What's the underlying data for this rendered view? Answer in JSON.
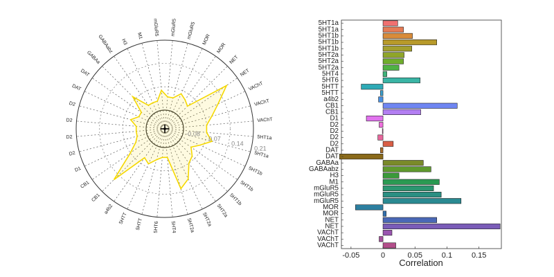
{
  "chart_data": [
    {
      "type": "radar",
      "categories": [
        "5HT1a",
        "5HT1a",
        "5HT1b",
        "5HT1b",
        "5HT1b",
        "5HT2a",
        "5HT2a",
        "5HT2a",
        "5HT4",
        "5HT6",
        "5HTT",
        "5HTT",
        "a4b2",
        "CB1",
        "CB1",
        "D1",
        "D2",
        "D2",
        "D2",
        "D2",
        "DAT",
        "DAT",
        "GABAa",
        "GABAabz",
        "H3",
        "M1",
        "mGluR5",
        "mGluR5",
        "mGluR5",
        "MOR",
        "MOR",
        "NET",
        "NET",
        "VAChT",
        "VAChT",
        "VAChT"
      ],
      "values": [
        0.07,
        0.09,
        0.06,
        0.04,
        0.06,
        0.07,
        0.11,
        0.13,
        0.03,
        0.03,
        0.04,
        0.06,
        0.05,
        0.16,
        0.07,
        0.04,
        0.03,
        0.03,
        0.03,
        0.05,
        0.03,
        0.03,
        0.08,
        0.03,
        0.03,
        0.03,
        0.06,
        0.04,
        0.04,
        0.06,
        0.05,
        0.04,
        0.17,
        0.12,
        0.09,
        0.07
      ],
      "radial_ticks": [
        "-0.08",
        "0.07",
        "0.14",
        "0.21"
      ],
      "rlim": [
        -0.08,
        0.21
      ],
      "color": "#f5d800"
    },
    {
      "type": "bar",
      "orientation": "horizontal",
      "categories": [
        "5HT1a",
        "5HT1a",
        "5HT1b",
        "5HT1b",
        "5HT1b",
        "5HT2a",
        "5HT2a",
        "5HT2a",
        "5HT4",
        "5HT6",
        "5HTT",
        "5HTT",
        "a4b2",
        "CB1",
        "CB1",
        "D1",
        "D2",
        "D2",
        "D2",
        "D2",
        "DAT",
        "DAT",
        "GABAa",
        "GABAabz",
        "H3",
        "M1",
        "mGluR5",
        "mGluR5",
        "mGluR5",
        "MOR",
        "MOR",
        "NET",
        "NET",
        "VAChT",
        "VAChT",
        "VAChT"
      ],
      "values": [
        0.023,
        0.032,
        0.046,
        0.084,
        0.045,
        0.033,
        0.032,
        0.025,
        0.006,
        0.058,
        -0.034,
        -0.004,
        -0.007,
        0.116,
        0.059,
        -0.026,
        -0.006,
        -0.001,
        -0.008,
        0.016,
        -0.004,
        -0.068,
        0.063,
        0.075,
        0.025,
        0.088,
        0.079,
        0.091,
        0.122,
        -0.043,
        0.005,
        0.084,
        0.183,
        0.014,
        -0.006,
        0.02
      ],
      "colors": [
        "#f07070",
        "#e57b55",
        "#d98c3a",
        "#b89a2a",
        "#a39f2e",
        "#8fa52a",
        "#6fad2c",
        "#4fb244",
        "#3fb47a",
        "#3ab5a5",
        "#2eaab6",
        "#3a9fce",
        "#4a90e0",
        "#6f86f2",
        "#b37ff2",
        "#e173ee",
        "#ee6fdc",
        "#f06fc5",
        "#e8669c",
        "#d95e46",
        "#a86c28",
        "#8a6a1a",
        "#7a8a2a",
        "#5f9a2e",
        "#3b9a3a",
        "#2a9a52",
        "#2b9670",
        "#2a8f82",
        "#2a8a92",
        "#2c7fa0",
        "#3270ae",
        "#4a68b6",
        "#7a5cb8",
        "#9a55b0",
        "#a8519e",
        "#b24e8a"
      ],
      "xlabel": "Correlation",
      "x_ticks": [
        "-0.05",
        "0",
        "0.05",
        "0.1",
        "0.15"
      ],
      "xlim": [
        -0.065,
        0.185
      ]
    }
  ]
}
